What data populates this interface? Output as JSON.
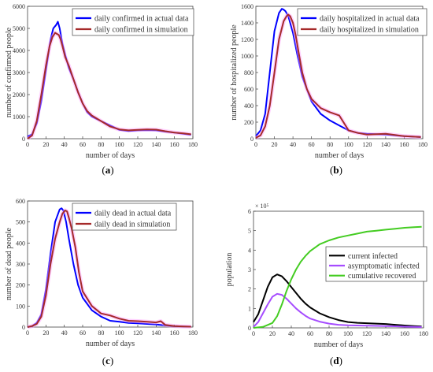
{
  "colors": {
    "actual": "#0000ff",
    "sim": "#a52a2a",
    "sim_band": "#ff99ff",
    "current_infected": "#000000",
    "asymptomatic": "#a64dff",
    "recovered": "#44cc22"
  },
  "chart_data": [
    {
      "id": "a",
      "type": "line",
      "caption": "(a)",
      "xlabel": "number of days",
      "ylabel": "number of confirmed people",
      "xlim": [
        0,
        180
      ],
      "ylim": [
        0,
        6000
      ],
      "xticks": [
        "0",
        "20",
        "40",
        "60",
        "80",
        "100",
        "120",
        "140",
        "160",
        "180"
      ],
      "yticks": [
        "0",
        "1000",
        "2000",
        "3000",
        "4000",
        "5000",
        "6000"
      ],
      "exponent": "",
      "grid": false,
      "legend_position": "top-right",
      "series": [
        {
          "name": "daily confirmed in actual data",
          "color_key": "actual",
          "x": [
            0,
            5,
            10,
            15,
            20,
            25,
            28,
            31,
            33,
            35,
            38,
            41,
            45,
            50,
            55,
            60,
            65,
            70,
            80,
            90,
            100,
            110,
            120,
            130,
            140,
            150,
            160,
            170,
            178
          ],
          "y": [
            100,
            200,
            700,
            1700,
            3100,
            4500,
            5000,
            5150,
            5300,
            5000,
            4300,
            3800,
            3200,
            2700,
            2100,
            1600,
            1200,
            1000,
            800,
            600,
            400,
            350,
            380,
            390,
            380,
            320,
            280,
            220,
            180
          ]
        },
        {
          "name": "daily confirmed in simulation",
          "color_key": "sim",
          "x": [
            0,
            5,
            10,
            15,
            20,
            24,
            27,
            30,
            32,
            34,
            36,
            38,
            41,
            45,
            50,
            55,
            60,
            65,
            70,
            80,
            90,
            100,
            110,
            120,
            130,
            140,
            150,
            160,
            170,
            178
          ],
          "y": [
            0,
            150,
            800,
            2000,
            3300,
            4200,
            4600,
            4800,
            4750,
            4700,
            4500,
            4200,
            3700,
            3300,
            2700,
            2100,
            1600,
            1250,
            1050,
            800,
            550,
            420,
            380,
            400,
            420,
            410,
            340,
            280,
            240,
            200
          ]
        }
      ]
    },
    {
      "id": "b",
      "type": "line",
      "caption": "(b)",
      "xlabel": "number of days",
      "ylabel": "number of hospitalized people",
      "xlim": [
        0,
        180
      ],
      "ylim": [
        0,
        1600
      ],
      "xticks": [
        "0",
        "20",
        "40",
        "60",
        "80",
        "100",
        "120",
        "140",
        "160",
        "180"
      ],
      "yticks": [
        "0",
        "200",
        "400",
        "600",
        "800",
        "1000",
        "1200",
        "1400",
        "1600"
      ],
      "exponent": "",
      "grid": false,
      "legend_position": "top-right",
      "series": [
        {
          "name": "daily hospitalized in actual data",
          "color_key": "actual",
          "x": [
            0,
            5,
            10,
            15,
            20,
            25,
            28,
            30,
            32,
            35,
            40,
            45,
            50,
            55,
            60,
            70,
            80,
            90,
            100,
            110,
            120,
            130,
            140,
            150,
            160,
            170,
            178
          ],
          "y": [
            30,
            100,
            300,
            800,
            1300,
            1520,
            1570,
            1560,
            1540,
            1480,
            1280,
            1000,
            750,
            600,
            450,
            300,
            220,
            160,
            100,
            70,
            60,
            55,
            50,
            40,
            30,
            25,
            20
          ]
        },
        {
          "name": "daily hospitalized in simulation",
          "color_key": "sim",
          "x": [
            0,
            5,
            10,
            15,
            20,
            25,
            30,
            33,
            35,
            37,
            40,
            43,
            46,
            50,
            55,
            60,
            70,
            80,
            90,
            100,
            110,
            120,
            130,
            140,
            150,
            160,
            170,
            178
          ],
          "y": [
            10,
            40,
            150,
            400,
            800,
            1200,
            1420,
            1480,
            1500,
            1480,
            1400,
            1250,
            1050,
            800,
            600,
            480,
            370,
            320,
            280,
            100,
            70,
            50,
            55,
            60,
            45,
            30,
            25,
            20
          ]
        }
      ]
    },
    {
      "id": "c",
      "type": "line",
      "caption": "(c)",
      "xlabel": "number of days",
      "ylabel": "number of dead people",
      "xlim": [
        0,
        180
      ],
      "ylim": [
        0,
        600
      ],
      "xticks": [
        "0",
        "20",
        "40",
        "60",
        "80",
        "100",
        "120",
        "140",
        "160",
        "180"
      ],
      "yticks": [
        "0",
        "100",
        "200",
        "300",
        "400",
        "500",
        "600"
      ],
      "exponent": "",
      "grid": false,
      "legend_position": "top-right",
      "series": [
        {
          "name": "daily dead in actual data",
          "color_key": "actual",
          "x": [
            0,
            5,
            10,
            15,
            20,
            25,
            30,
            35,
            37,
            39,
            42,
            45,
            50,
            55,
            60,
            70,
            80,
            90,
            100,
            110,
            120,
            130,
            140,
            150,
            160,
            170,
            178
          ],
          "y": [
            0,
            5,
            20,
            60,
            180,
            350,
            500,
            560,
            565,
            555,
            500,
            420,
            300,
            200,
            140,
            80,
            50,
            30,
            25,
            20,
            18,
            15,
            12,
            8,
            5,
            3,
            2
          ]
        },
        {
          "name": "daily dead in simulation",
          "color_key": "sim",
          "x": [
            0,
            5,
            10,
            15,
            20,
            25,
            30,
            35,
            38,
            41,
            43,
            45,
            48,
            52,
            56,
            60,
            70,
            80,
            90,
            100,
            110,
            120,
            130,
            140,
            145,
            150,
            160,
            170,
            178
          ],
          "y": [
            0,
            5,
            15,
            50,
            150,
            300,
            420,
            500,
            540,
            555,
            550,
            520,
            470,
            380,
            260,
            170,
            100,
            65,
            55,
            40,
            30,
            28,
            25,
            22,
            28,
            10,
            5,
            3,
            2
          ]
        }
      ]
    },
    {
      "id": "d",
      "type": "line",
      "caption": "(d)",
      "xlabel": "number of days",
      "ylabel": "population",
      "xlim": [
        0,
        180
      ],
      "ylim": [
        0,
        6
      ],
      "xticks": [
        "0",
        "20",
        "40",
        "60",
        "80",
        "100",
        "120",
        "140",
        "160",
        "180"
      ],
      "yticks": [
        "0",
        "1",
        "2",
        "3",
        "4",
        "5",
        "6"
      ],
      "exponent": "× 10⁵",
      "grid": false,
      "legend_position": "center-right",
      "series": [
        {
          "name": "current infected",
          "color_key": "current_infected",
          "x": [
            0,
            5,
            10,
            15,
            20,
            25,
            30,
            35,
            40,
            45,
            50,
            55,
            60,
            70,
            80,
            90,
            100,
            110,
            120,
            130,
            140,
            150,
            160,
            170,
            178
          ],
          "y": [
            0.3,
            0.7,
            1.4,
            2.1,
            2.6,
            2.75,
            2.65,
            2.4,
            2.1,
            1.8,
            1.5,
            1.25,
            1.05,
            0.75,
            0.55,
            0.4,
            0.3,
            0.26,
            0.24,
            0.22,
            0.2,
            0.16,
            0.12,
            0.09,
            0.07
          ]
        },
        {
          "name": "asymptomatic infected",
          "color_key": "asymptomatic",
          "x": [
            0,
            5,
            10,
            15,
            20,
            25,
            30,
            35,
            40,
            45,
            50,
            55,
            60,
            70,
            80,
            90,
            100,
            110,
            120,
            130,
            140,
            150,
            160,
            170,
            178
          ],
          "y": [
            0.05,
            0.3,
            0.75,
            1.2,
            1.6,
            1.75,
            1.7,
            1.5,
            1.25,
            1.0,
            0.8,
            0.62,
            0.48,
            0.32,
            0.22,
            0.16,
            0.13,
            0.12,
            0.11,
            0.1,
            0.09,
            0.08,
            0.06,
            0.05,
            0.04
          ]
        },
        {
          "name": "cumulative recovered",
          "color_key": "recovered",
          "x": [
            0,
            10,
            20,
            25,
            30,
            35,
            40,
            45,
            50,
            55,
            60,
            70,
            80,
            90,
            100,
            110,
            120,
            130,
            140,
            150,
            160,
            170,
            178
          ],
          "y": [
            0,
            0.05,
            0.25,
            0.6,
            1.2,
            1.9,
            2.5,
            3.0,
            3.4,
            3.7,
            3.95,
            4.3,
            4.5,
            4.65,
            4.75,
            4.85,
            4.95,
            5.0,
            5.05,
            5.1,
            5.15,
            5.18,
            5.2
          ]
        }
      ]
    }
  ]
}
